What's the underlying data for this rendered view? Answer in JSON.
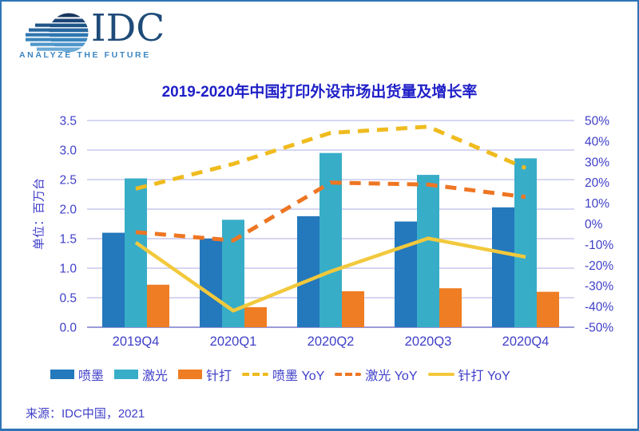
{
  "logo": {
    "brand": "IDC",
    "tagline": "ANALYZE THE FUTURE"
  },
  "title": "2019-2020年中国打印外设市场出货量及增长率",
  "source": "来源：IDC中国，2021",
  "colors": {
    "frame": "#2E75B6",
    "title_blue": "#1F1FC8",
    "text_blue": "#3F3FC9",
    "gridline": "#C8C8EE",
    "axis_line": "#9B9BD9",
    "inkjet_bar": "#2478BC",
    "laser_bar": "#38ADC8",
    "dot_matrix_bar": "#EF7D23",
    "inkjet_yoy_line": "#EFBB1E",
    "laser_yoy_line": "#EE7623",
    "dot_matrix_yoy_line": "#F2C93C",
    "logo_navy": "#1E4B79",
    "logo_light_blue": "#3E86C2"
  },
  "chart_data": {
    "type": "bar+line combo",
    "title": "2019-2020年中国打印外设市场出货量及增长率",
    "categories": [
      "2019Q4",
      "2020Q1",
      "2020Q2",
      "2020Q3",
      "2020Q4"
    ],
    "bar_series": [
      {
        "name": "喷墨",
        "color": "#2478BC",
        "values": [
          1.6,
          1.5,
          1.88,
          1.79,
          2.03
        ]
      },
      {
        "name": "激光",
        "color": "#38ADC8",
        "values": [
          2.52,
          1.82,
          2.95,
          2.58,
          2.86
        ]
      },
      {
        "name": "针打",
        "color": "#EF7D23",
        "values": [
          0.72,
          0.34,
          0.61,
          0.66,
          0.6
        ]
      }
    ],
    "line_series": [
      {
        "name": "喷墨 YoY",
        "color": "#EFBB1E",
        "style": "dashed",
        "values": [
          17,
          29,
          44,
          47,
          27
        ]
      },
      {
        "name": "激光 YoY",
        "color": "#EE7623",
        "style": "dashed",
        "values": [
          -4,
          -8,
          20,
          19,
          13
        ]
      },
      {
        "name": "针打 YoY",
        "color": "#F2C93C",
        "style": "solid",
        "values": [
          -9,
          -42,
          -23,
          -7,
          -16
        ]
      }
    ],
    "left_axis": {
      "label": "单位：百万台",
      "min": 0,
      "max": 3.5,
      "step": 0.5,
      "tick_labels": [
        "0.0",
        "0.5",
        "1.0",
        "1.5",
        "2.0",
        "2.5",
        "3.0",
        "3.5"
      ]
    },
    "right_axis": {
      "min": -50,
      "max": 50,
      "step": 10,
      "tick_labels": [
        "-50%",
        "-40%",
        "-30%",
        "-20%",
        "-10%",
        "0%",
        "10%",
        "20%",
        "30%",
        "40%",
        "50%"
      ]
    },
    "grid": true,
    "legend_position": "bottom"
  }
}
